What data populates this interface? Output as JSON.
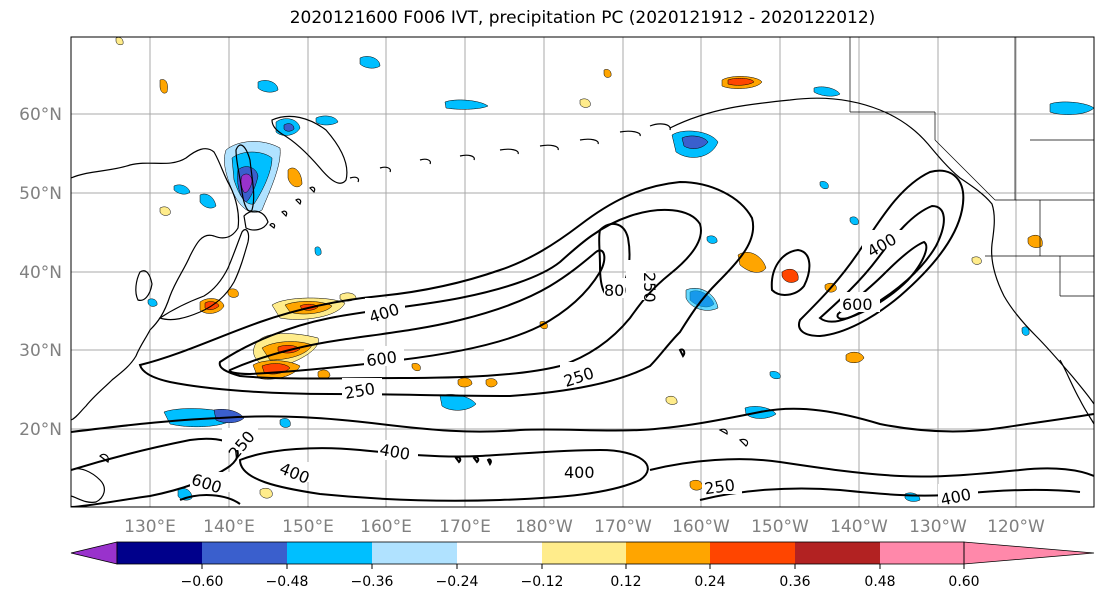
{
  "title": "2020121600 F006 IVT, precipitation PC (2020121912 - 2020122012)",
  "latitude_labels": [
    "60°N",
    "50°N",
    "40°N",
    "30°N",
    "20°N"
  ],
  "longitude_labels": [
    "130°E",
    "140°E",
    "150°E",
    "160°E",
    "170°E",
    "180°W",
    "170°W",
    "160°W",
    "150°W",
    "140°W",
    "130°W",
    "120°W"
  ],
  "contour_labels": [
    "400",
    "600",
    "250",
    "800",
    "250",
    "250",
    "400",
    "600",
    "250",
    "400",
    "400",
    "600",
    "400",
    "250",
    "400"
  ],
  "colorbar": {
    "ticks": [
      "−0.60",
      "−0.48",
      "−0.36",
      "−0.24",
      "−0.12",
      "0.12",
      "0.24",
      "0.36",
      "0.48",
      "0.60"
    ],
    "colors": [
      "#9932cc",
      "#00008b",
      "#3a5fcd",
      "#00bfff",
      "#b0e2ff",
      "#ffffff",
      "#ffec8b",
      "#ffa500",
      "#ff4500",
      "#b22222",
      "#ff88aa",
      "#ff88aa"
    ]
  },
  "colors": {
    "contour": "#000000",
    "grid": "#a0a0a0",
    "coast": "#000000"
  }
}
